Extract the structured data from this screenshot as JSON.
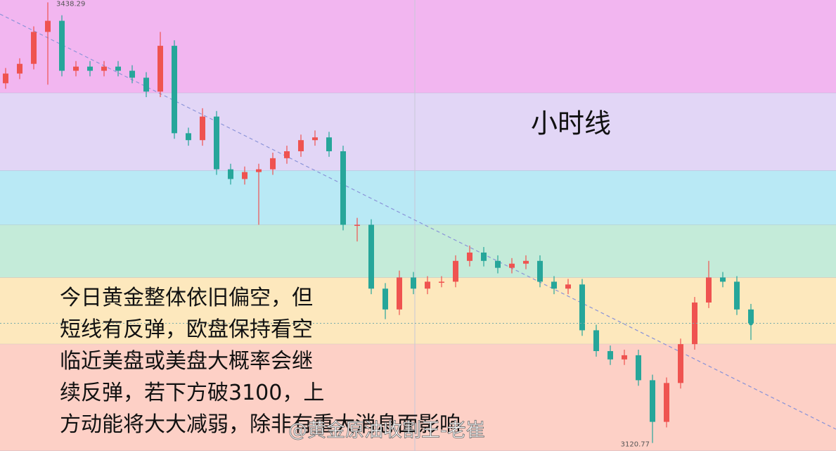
{
  "chart_data": {
    "type": "candlestick",
    "title": "小时线",
    "ylim": [
      3115,
      3440
    ],
    "up_color": "#ef5350",
    "down_color": "#26a69a",
    "bands": [
      {
        "from": 3373,
        "to": 3440,
        "color": "#f2b6f0"
      },
      {
        "from": 3317,
        "to": 3373,
        "color": "#e2d6f6"
      },
      {
        "from": 3278,
        "to": 3317,
        "color": "#b9e9f5"
      },
      {
        "from": 3240,
        "to": 3278,
        "color": "#c4ebd9"
      },
      {
        "from": 3192,
        "to": 3240,
        "color": "#fde8bd"
      },
      {
        "from": 3115,
        "to": 3192,
        "color": "#fdd0c6"
      }
    ],
    "open": [
      3380,
      3387,
      3394,
      3417,
      3425,
      3389,
      3392,
      3389,
      3392,
      3389,
      3384,
      3374,
      3407,
      3344,
      3339,
      3356,
      3318,
      3311,
      3316,
      3318,
      3326,
      3331,
      3339,
      3341,
      3331,
      3278,
      3278,
      3232,
      3217,
      3240,
      3232,
      3237,
      3237,
      3252,
      3258,
      3252,
      3247,
      3250,
      3252,
      3237,
      3232,
      3235,
      3202,
      3187,
      3181,
      3184,
      3166,
      3136,
      3164,
      3192,
      3222,
      3240,
      3237,
      3217
    ],
    "high": [
      3391,
      3398,
      3421,
      3438.29,
      3429,
      3396,
      3396,
      3396,
      3396,
      3393,
      3388,
      3417,
      3411,
      3348,
      3362,
      3360,
      3322,
      3320,
      3322,
      3330,
      3335,
      3343,
      3346,
      3345,
      3335,
      3283,
      3282,
      3236,
      3245,
      3244,
      3241,
      3241,
      3256,
      3263,
      3262,
      3256,
      3254,
      3256,
      3256,
      3241,
      3239,
      3239,
      3206,
      3191,
      3188,
      3188,
      3170,
      3168,
      3196,
      3226,
      3252,
      3244,
      3241,
      3221
    ],
    "low": [
      3376,
      3383,
      3390,
      3379,
      3385,
      3385,
      3385,
      3385,
      3385,
      3380,
      3370,
      3370,
      3340,
      3335,
      3335,
      3314,
      3307,
      3307,
      3278,
      3314,
      3322,
      3327,
      3335,
      3327,
      3274,
      3266,
      3228,
      3210,
      3213,
      3228,
      3228,
      3233,
      3233,
      3248,
      3248,
      3243,
      3243,
      3246,
      3233,
      3228,
      3228,
      3198,
      3183,
      3177,
      3177,
      3162,
      3120.77,
      3132,
      3160,
      3188,
      3218,
      3233,
      3213,
      3195
    ],
    "close": [
      3387,
      3394,
      3417,
      3425,
      3389,
      3392,
      3389,
      3392,
      3389,
      3384,
      3374,
      3407,
      3344,
      3339,
      3356,
      3318,
      3311,
      3316,
      3318,
      3326,
      3331,
      3339,
      3341,
      3331,
      3278,
      3278,
      3232,
      3217,
      3240,
      3232,
      3237,
      3237,
      3252,
      3258,
      3252,
      3247,
      3250,
      3252,
      3237,
      3232,
      3235,
      3202,
      3187,
      3181,
      3184,
      3166,
      3136,
      3164,
      3192,
      3222,
      3240,
      3237,
      3217,
      3207
    ],
    "annotation_lines": [
      "今日黄金整体依旧偏空，但",
      "短线有反弹，欧盘保持看空",
      "临近美盘或美盘大概率会继",
      "续反弹，若下方破3100，上",
      "方动能将大大减弱，除非有重大消息面影响"
    ],
    "watermark": "@黄金原油收割王-老崔"
  }
}
